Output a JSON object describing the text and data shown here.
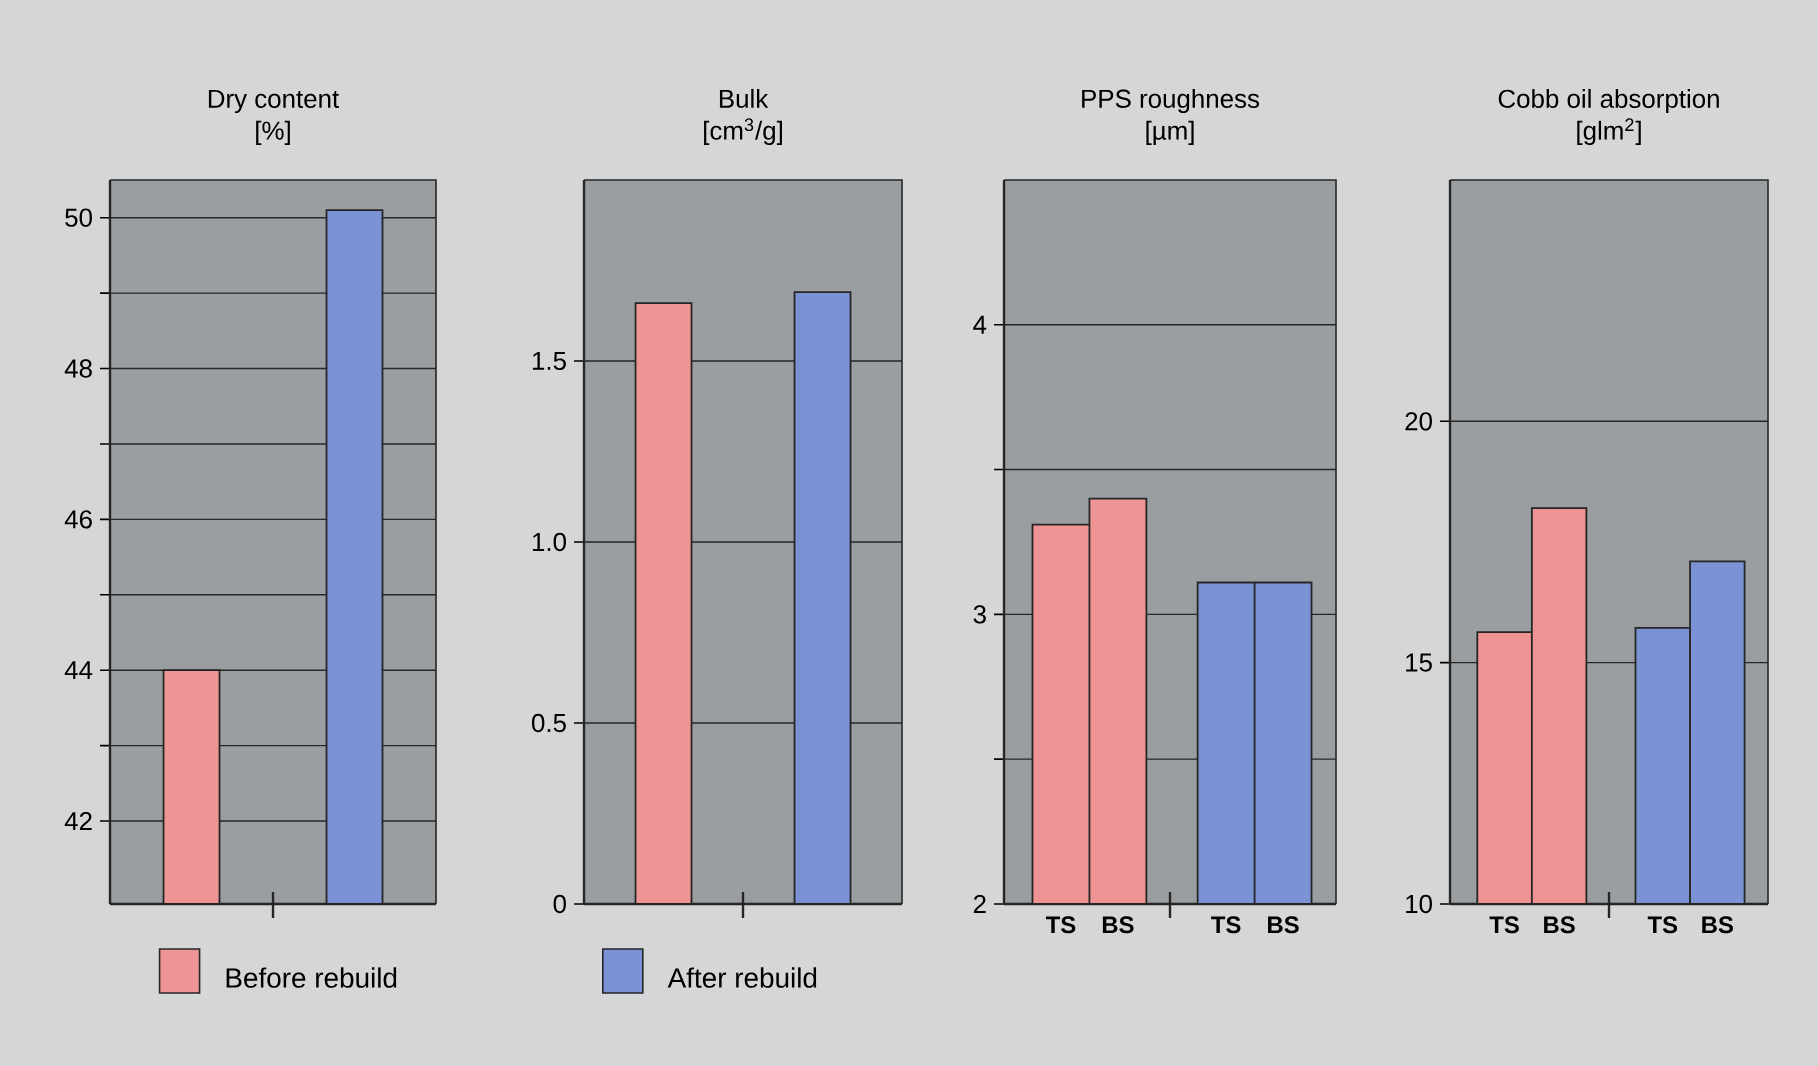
{
  "chart_data": [
    {
      "type": "bar",
      "title": "Dry content",
      "subtitle": "[%]",
      "categories": [
        null,
        null
      ],
      "series": [
        {
          "name": "Before rebuild",
          "color": "#ef9494",
          "values": [
            44.0,
            null
          ]
        },
        {
          "name": "After rebuild",
          "color": "#7b92d4",
          "values": [
            null,
            50.1
          ]
        }
      ],
      "ylim": [
        40.9,
        50.5
      ],
      "yticks": [
        42,
        {
          "value": 43,
          "label": null
        },
        44,
        {
          "value": 45,
          "label": null
        },
        46,
        {
          "value": 47,
          "label": null
        },
        48,
        {
          "value": 49,
          "label": null
        },
        50
      ],
      "grid": "y",
      "legend": "bottom"
    },
    {
      "type": "bar",
      "title": "Bulk",
      "subtitle": "[cm$^{3}$/g]",
      "categories": [
        null,
        null
      ],
      "series": [
        {
          "color": "#ef9494",
          "values": [
            1.66,
            null
          ]
        },
        {
          "color": "#7b92d4",
          "values": [
            null,
            1.69
          ]
        }
      ],
      "ylim": [
        0,
        2
      ],
      "yticks": [
        0,
        0.5,
        {
          "value": 1,
          "label": "1.0"
        },
        1.5
      ],
      "grid": "y"
    },
    {
      "type": "bar",
      "title": "PPS roughness",
      "subtitle": "[µm]",
      "categories": [
        "TS",
        "BS",
        "TS",
        "BS"
      ],
      "series": [
        {
          "color": "#ef9494",
          "values": [
            3.31,
            3.4,
            null,
            null
          ]
        },
        {
          "color": "#7b92d4",
          "values": [
            null,
            null,
            3.11,
            3.11
          ]
        }
      ],
      "ylim": [
        2,
        4.5
      ],
      "yticks": [
        2,
        {
          "value": 2.5,
          "label": null
        },
        3,
        {
          "value": 3.5,
          "label": null
        },
        4
      ],
      "grid": "y"
    },
    {
      "type": "bar",
      "title": "Cobb oil absorption",
      "subtitle": "[glm$^{2}$]",
      "categories": [
        "TS",
        "BS",
        "TS",
        "BS"
      ],
      "series": [
        {
          "color": "#ef9494",
          "values": [
            15.63,
            18.2,
            null,
            null
          ]
        },
        {
          "color": "#7b92d4",
          "values": [
            null,
            null,
            15.72,
            17.1
          ]
        }
      ],
      "ylim": [
        10,
        25
      ],
      "yticks": [
        10,
        15,
        20
      ],
      "grid": "y"
    }
  ]
}
